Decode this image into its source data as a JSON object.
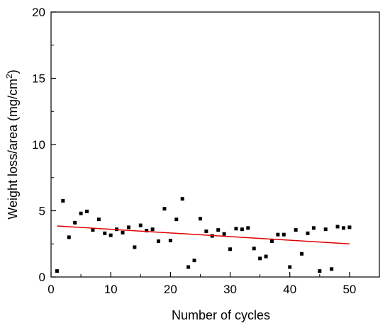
{
  "chart_data": {
    "type": "scatter",
    "xlabel": "Number of cycles",
    "ylabel_main": "Weight loss/area (mg/cm",
    "ylabel_sup": "2",
    "ylabel_close": ")",
    "xlim": [
      0,
      55
    ],
    "ylim": [
      0,
      20
    ],
    "xticks": [
      0,
      10,
      20,
      30,
      40,
      50
    ],
    "yticks": [
      0,
      5,
      10,
      15,
      20
    ],
    "grid": false,
    "legend": "none",
    "point_color": "#000000",
    "fit_color": "#e00000",
    "points": [
      [
        1,
        0.45
      ],
      [
        2,
        5.75
      ],
      [
        3,
        3.0
      ],
      [
        4,
        4.1
      ],
      [
        5,
        4.8
      ],
      [
        6,
        4.95
      ],
      [
        7,
        3.55
      ],
      [
        8,
        4.35
      ],
      [
        9,
        3.3
      ],
      [
        10,
        3.15
      ],
      [
        11,
        3.6
      ],
      [
        12,
        3.35
      ],
      [
        13,
        3.75
      ],
      [
        14,
        2.25
      ],
      [
        15,
        3.9
      ],
      [
        16,
        3.5
      ],
      [
        17,
        3.6
      ],
      [
        18,
        2.7
      ],
      [
        19,
        5.15
      ],
      [
        20,
        2.75
      ],
      [
        21,
        4.35
      ],
      [
        22,
        5.9
      ],
      [
        23,
        0.75
      ],
      [
        24,
        1.25
      ],
      [
        25,
        4.4
      ],
      [
        26,
        3.45
      ],
      [
        27,
        3.1
      ],
      [
        28,
        3.55
      ],
      [
        29,
        3.25
      ],
      [
        30,
        2.1
      ],
      [
        31,
        3.65
      ],
      [
        32,
        3.6
      ],
      [
        33,
        3.7
      ],
      [
        34,
        2.15
      ],
      [
        35,
        1.4
      ],
      [
        36,
        1.55
      ],
      [
        37,
        2.7
      ],
      [
        38,
        3.2
      ],
      [
        39,
        3.2
      ],
      [
        40,
        0.75
      ],
      [
        41,
        3.55
      ],
      [
        42,
        1.75
      ],
      [
        43,
        3.3
      ],
      [
        44,
        3.7
      ],
      [
        45,
        0.45
      ],
      [
        46,
        3.6
      ],
      [
        47,
        0.6
      ],
      [
        48,
        3.8
      ],
      [
        49,
        3.7
      ],
      [
        50,
        3.75
      ]
    ],
    "fit_line": {
      "x": [
        1,
        50
      ],
      "y": [
        3.85,
        2.5
      ]
    }
  }
}
